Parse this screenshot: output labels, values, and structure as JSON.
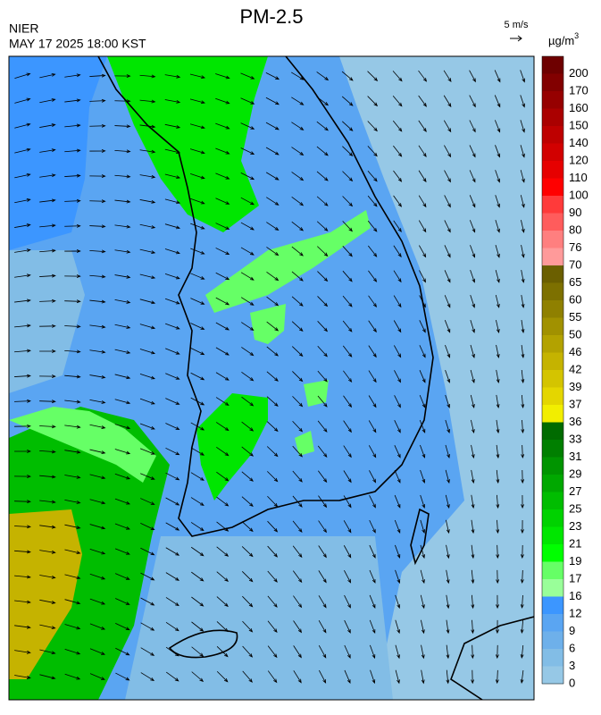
{
  "header": {
    "title": "PM-2.5",
    "agency": "NIER",
    "timestamp": "MAY 17 2025 18:00 KST",
    "wind_scale": "5 m/s"
  },
  "colorbar": {
    "unit": {
      "text": "µg/m",
      "superscript": "3"
    },
    "labels": [
      200,
      170,
      160,
      150,
      140,
      120,
      110,
      100,
      90,
      80,
      76,
      70,
      65,
      60,
      55,
      50,
      46,
      42,
      39,
      37,
      36,
      33,
      31,
      29,
      27,
      25,
      23,
      21,
      19,
      17,
      16,
      12,
      9,
      6,
      3,
      0
    ],
    "colors": [
      "#6e0000",
      "#820000",
      "#960000",
      "#aa0000",
      "#be0000",
      "#d20000",
      "#e60000",
      "#ff0000",
      "#ff3a3a",
      "#ff5c5c",
      "#ff7f7f",
      "#ff9a9a",
      "#6b5f00",
      "#7d7000",
      "#8f8000",
      "#a19100",
      "#b3a200",
      "#c5b300",
      "#d4c400",
      "#e4d600",
      "#f2ee00",
      "#006b00",
      "#007f00",
      "#009400",
      "#00a800",
      "#00bd00",
      "#00d200",
      "#00e600",
      "#00ff00",
      "#66ff66",
      "#99ff99",
      "#3c96ff",
      "#5aa5f2",
      "#6eb0ea",
      "#82bde6",
      "#96c8e6"
    ]
  }
}
